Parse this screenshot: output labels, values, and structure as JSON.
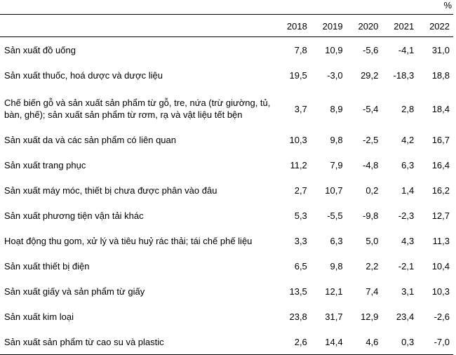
{
  "unit": "%",
  "years": [
    "2018",
    "2019",
    "2020",
    "2021",
    "2022"
  ],
  "rows": [
    {
      "label": "Sản xuất đồ uống",
      "values": [
        "7,8",
        "10,9",
        "-5,6",
        "-4,1",
        "31,0"
      ]
    },
    {
      "label": "Sản xuất thuốc, hoá dược và dược liệu",
      "values": [
        "19,5",
        "-3,0",
        "29,2",
        "-18,3",
        "18,8"
      ]
    },
    {
      "label": "Chế biến gỗ và sản xuất sản phẩm từ gỗ, tre, nứa (trừ giường, tủ, bàn, ghế); sản xuất sản phẩm từ rơm, rạ và vật liệu tết bện",
      "values": [
        "3,7",
        "8,9",
        "-5,4",
        "2,8",
        "18,4"
      ]
    },
    {
      "label": "Sản xuất da và các sản phẩm có liên quan",
      "values": [
        "10,3",
        "9,8",
        "-2,5",
        "4,2",
        "16,7"
      ]
    },
    {
      "label": "Sản xuất trang phục",
      "values": [
        "11,2",
        "7,9",
        "-4,8",
        "6,3",
        "16,4"
      ]
    },
    {
      "label": "Sản xuất máy móc, thiết bị chưa được phân vào đâu",
      "values": [
        "2,7",
        "10,7",
        "0,2",
        "1,4",
        "16,2"
      ]
    },
    {
      "label": "Sản xuất phương tiện vận tải khác",
      "values": [
        "5,3",
        "-5,5",
        "-9,8",
        "-2,3",
        "12,7"
      ]
    },
    {
      "label": "Hoạt động thu gom, xử lý và tiêu huỷ rác thải; tái chế phế liệu",
      "values": [
        "3,3",
        "6,3",
        "5,0",
        "4,3",
        "11,3"
      ]
    },
    {
      "label": "Sản xuất thiết bị điện",
      "values": [
        "6,5",
        "9,8",
        "2,2",
        "-2,1",
        "10,4"
      ]
    },
    {
      "label": "Sản xuất giấy và sản phẩm từ giấy",
      "values": [
        "13,5",
        "12,1",
        "7,4",
        "3,1",
        "10,3"
      ]
    },
    {
      "label": "Sản xuất kim loại",
      "values": [
        "23,8",
        "31,7",
        "12,9",
        "23,4",
        "-2,6"
      ]
    },
    {
      "label": "Sản xuất sản phẩm từ cao su và plastic",
      "values": [
        "2,6",
        "14,4",
        "4,6",
        "0,3",
        "-7,0"
      ]
    }
  ]
}
